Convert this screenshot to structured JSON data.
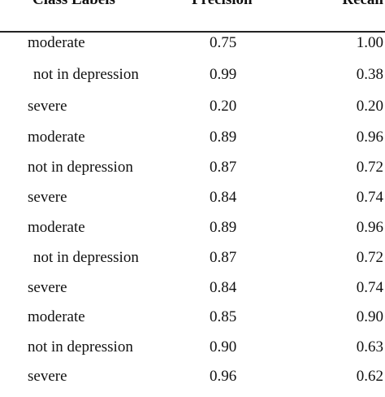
{
  "table": {
    "headers": {
      "class_labels": "Class Labels",
      "precision": "Precision",
      "recall": "Recall"
    },
    "rows": [
      {
        "label": "moderate",
        "precision": "0.75",
        "recall": "1.00"
      },
      {
        "label": "not in depression",
        "precision": "0.99",
        "recall": "0.38"
      },
      {
        "label": "severe",
        "precision": "0.20",
        "recall": "0.20"
      },
      {
        "label": "moderate",
        "precision": "0.89",
        "recall": "0.96"
      },
      {
        "label": "not in depression",
        "precision": "0.87",
        "recall": "0.72"
      },
      {
        "label": "severe",
        "precision": "0.84",
        "recall": "0.74"
      },
      {
        "label": "moderate",
        "precision": "0.89",
        "recall": "0.96"
      },
      {
        "label": "not in depression",
        "precision": "0.87",
        "recall": "0.72"
      },
      {
        "label": "severe",
        "precision": "0.84",
        "recall": "0.74"
      },
      {
        "label": "moderate",
        "precision": "0.85",
        "recall": "0.90"
      },
      {
        "label": "not in depression",
        "precision": "0.90",
        "recall": "0.63"
      },
      {
        "label": "severe",
        "precision": "0.96",
        "recall": "0.62"
      }
    ]
  }
}
